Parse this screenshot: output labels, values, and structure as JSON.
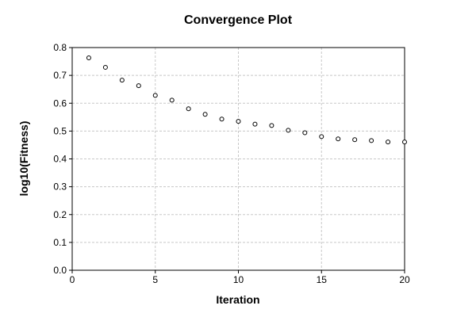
{
  "chart_data": {
    "type": "scatter",
    "title": "Convergence Plot",
    "xlabel": "Iteration",
    "ylabel": "log10(Fitness)",
    "xlim": [
      0,
      20
    ],
    "ylim": [
      0,
      0.8
    ],
    "xticks": [
      "0",
      "5",
      "10",
      "15",
      "20"
    ],
    "yticks": [
      "0.0",
      "0.1",
      "0.2",
      "0.3",
      "0.4",
      "0.5",
      "0.6",
      "0.7",
      "0.8"
    ],
    "grid": true,
    "marker": "open-circle",
    "series": [
      {
        "x": [
          1,
          2,
          3,
          4,
          5,
          6,
          7,
          8,
          9,
          10,
          11,
          12,
          13,
          14,
          15,
          16,
          17,
          18,
          19,
          20
        ],
        "y": [
          0.763,
          0.729,
          0.683,
          0.663,
          0.628,
          0.611,
          0.58,
          0.56,
          0.543,
          0.535,
          0.525,
          0.52,
          0.503,
          0.494,
          0.48,
          0.472,
          0.469,
          0.466,
          0.461,
          0.461
        ]
      }
    ],
    "colors": {
      "marker_stroke": "#000000",
      "marker_fill": "#ffffff",
      "grid": "#c8c8c8"
    }
  }
}
